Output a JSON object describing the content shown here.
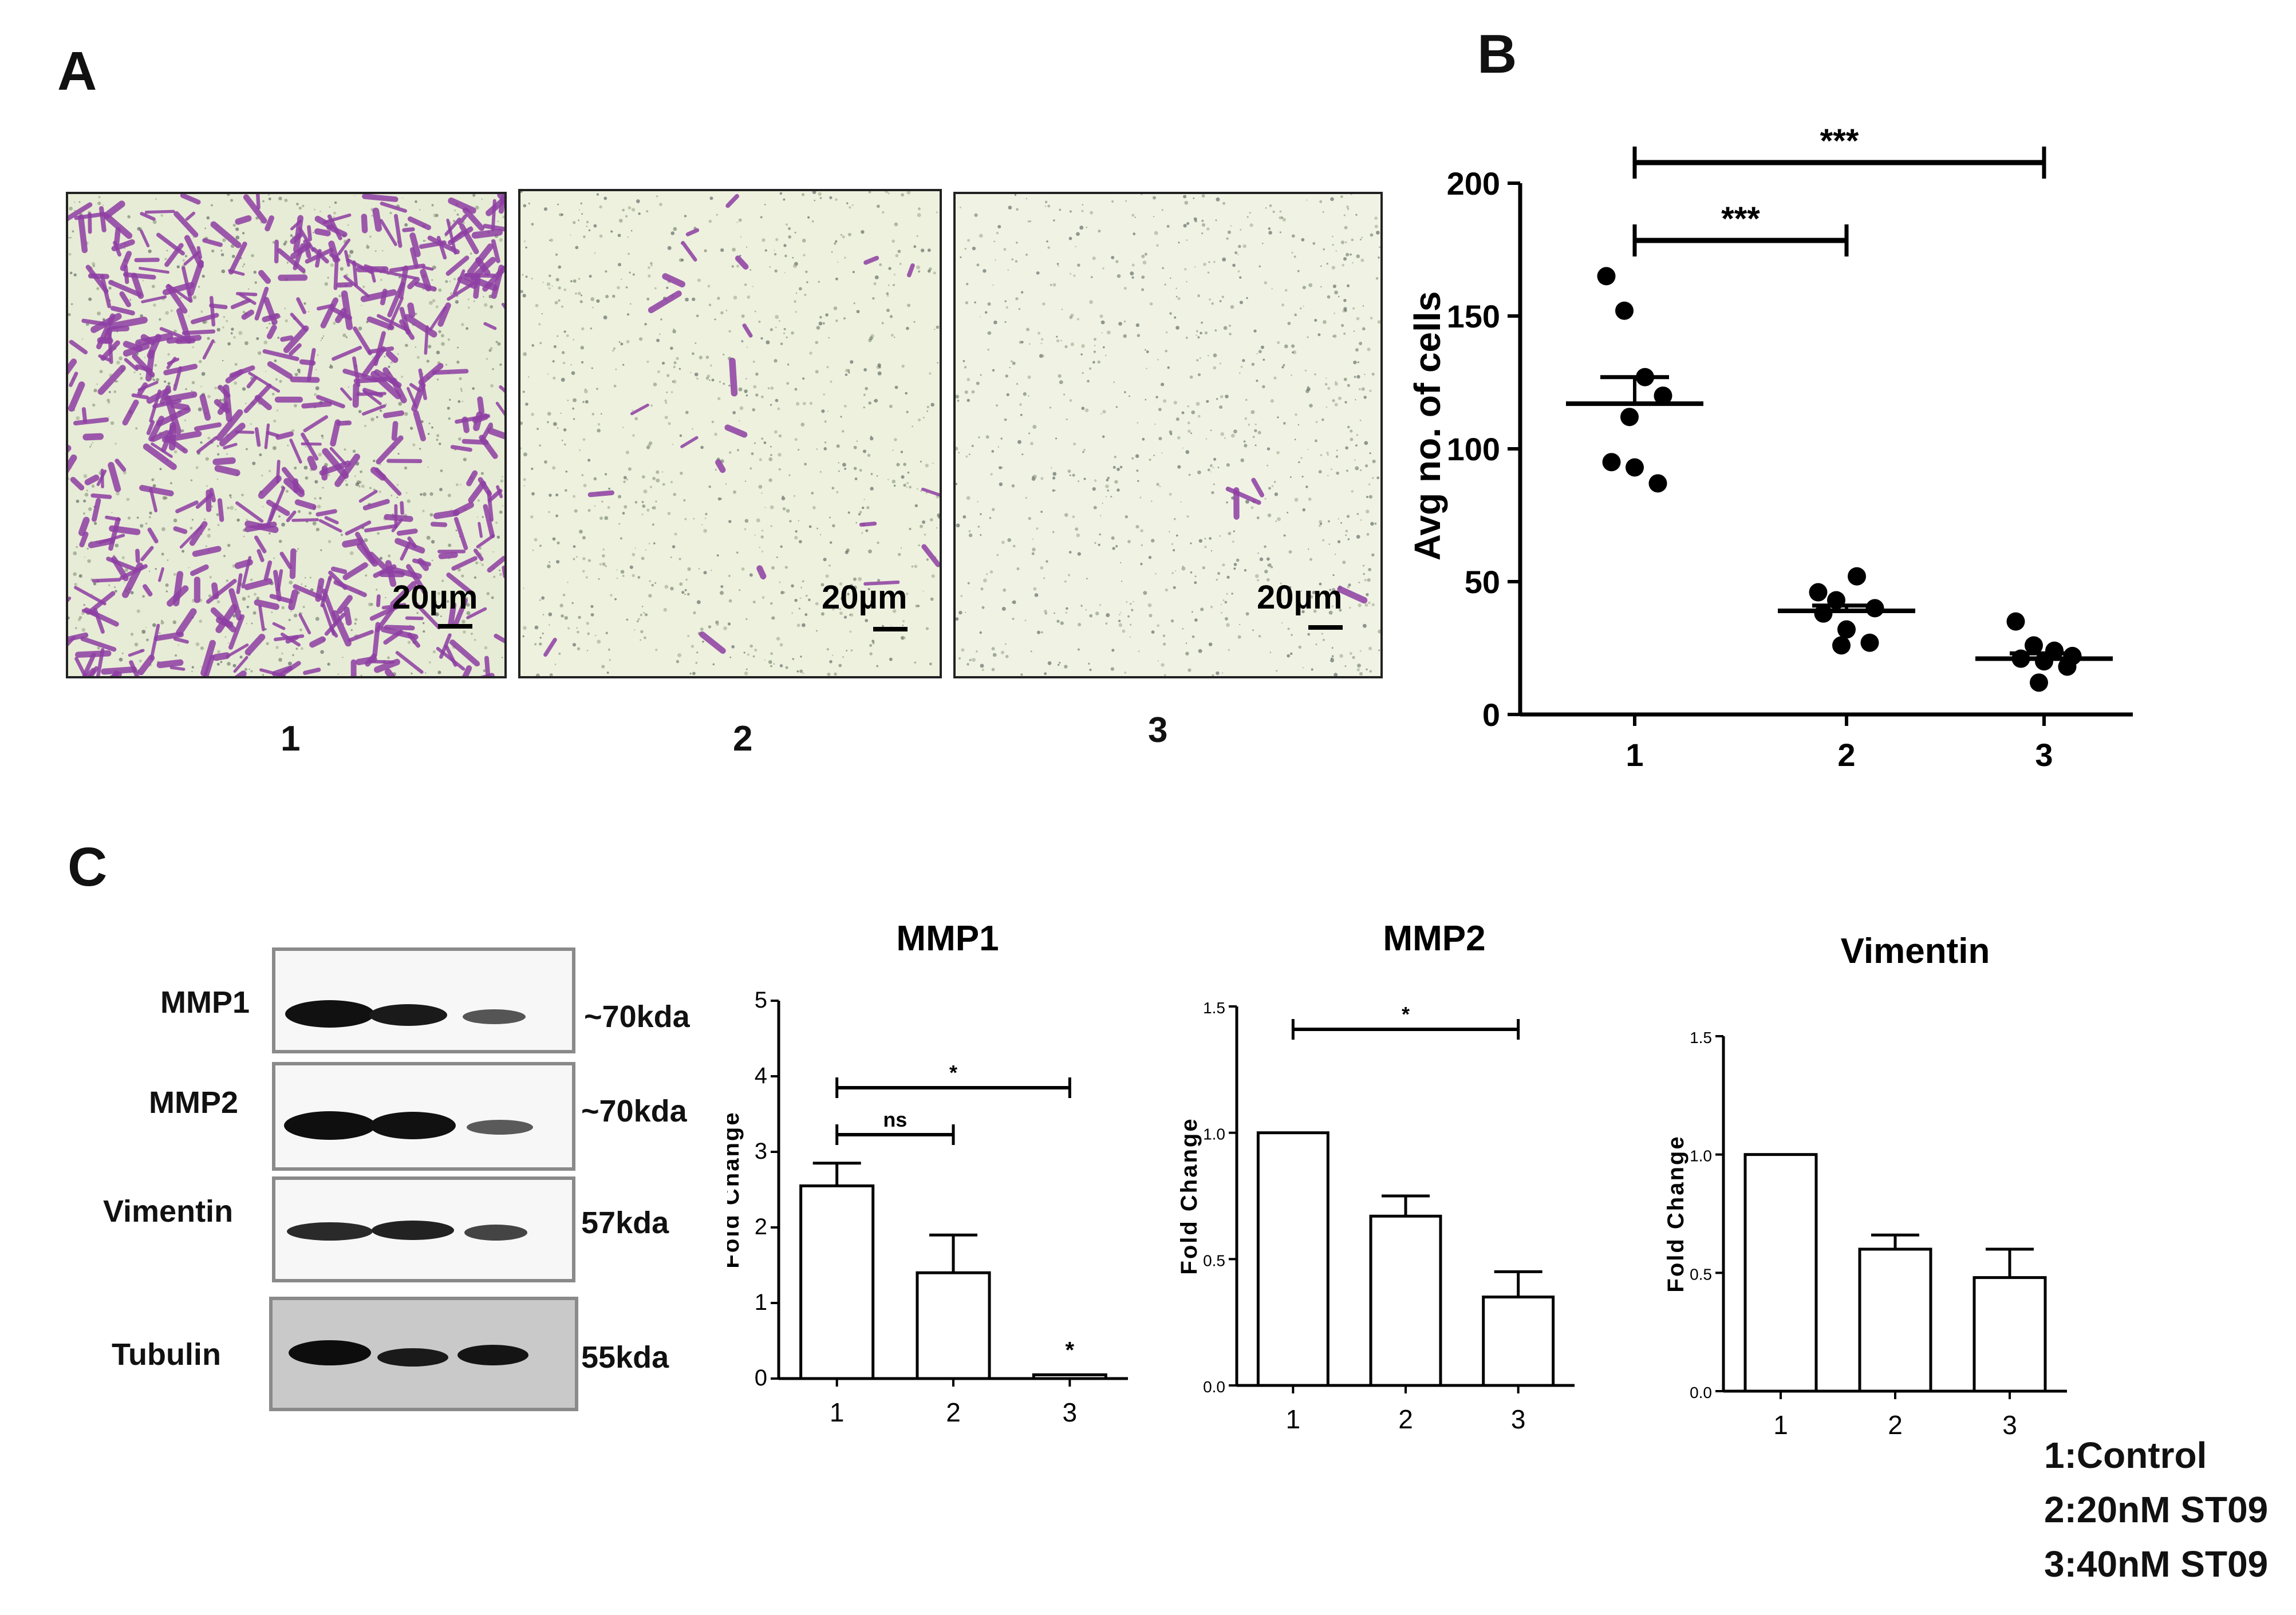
{
  "panels": {
    "A": "A",
    "B": "B",
    "C": "C"
  },
  "panel_a": {
    "scale_label": "20µm",
    "lanes": [
      "1",
      "2",
      "3"
    ]
  },
  "western_blot": {
    "rows": [
      {
        "name": "MMP1",
        "kda": "~70kda"
      },
      {
        "name": "MMP2",
        "kda": "~70kda"
      },
      {
        "name": "Vimentin",
        "kda": "57kda"
      },
      {
        "name": "Tubulin",
        "kda": "55kda"
      }
    ]
  },
  "legend": {
    "line1": "1:Control",
    "line2": "2:20nM ST09",
    "line3": "3:40nM ST09"
  },
  "colors": {
    "stain": "#8e3fa3",
    "background": "#ffffff",
    "ink": "#000000"
  },
  "chart_data": [
    {
      "id": "B",
      "type": "scatter",
      "title": "",
      "xlabel": "",
      "ylabel": "Avg no. of cells",
      "categories": [
        "1",
        "2",
        "3"
      ],
      "ylim": [
        0,
        200
      ],
      "yticks": [
        0,
        50,
        100,
        150,
        200
      ],
      "points": [
        [
          165,
          152,
          127,
          120,
          95,
          93,
          87,
          112
        ],
        [
          46,
          43,
          52,
          40,
          38,
          32,
          27,
          26
        ],
        [
          35,
          26,
          24,
          22,
          21,
          20,
          18,
          12
        ]
      ],
      "means": [
        117,
        39,
        21
      ],
      "sem_upper": [
        127,
        41,
        23
      ],
      "significance": [
        {
          "from": "1",
          "to": "2",
          "label": "***"
        },
        {
          "from": "1",
          "to": "3",
          "label": "***"
        }
      ]
    },
    {
      "id": "MMP1",
      "type": "bar",
      "title": "MMP1",
      "xlabel": "",
      "ylabel": "Fold Change",
      "categories": [
        "1",
        "2",
        "3"
      ],
      "values": [
        2.55,
        1.4,
        0.05
      ],
      "errors": [
        0.3,
        0.5,
        0
      ],
      "ylim": [
        0,
        5
      ],
      "yticks": [
        0,
        1,
        2,
        3,
        4,
        5
      ],
      "significance": [
        {
          "from": "1",
          "to": "2",
          "label": "ns"
        },
        {
          "from": "1",
          "to": "3",
          "label": "*"
        }
      ],
      "bar_annotations": [
        {
          "category": "3",
          "label": "*"
        }
      ]
    },
    {
      "id": "MMP2",
      "type": "bar",
      "title": "MMP2",
      "xlabel": "",
      "ylabel": "Fold Change",
      "categories": [
        "1",
        "2",
        "3"
      ],
      "values": [
        1.0,
        0.67,
        0.35
      ],
      "errors": [
        0,
        0.08,
        0.1
      ],
      "ylim": [
        0,
        1.5
      ],
      "yticks": [
        "0.0",
        "0.5",
        "1.0",
        "1.5"
      ],
      "significance": [
        {
          "from": "1",
          "to": "3",
          "label": "*"
        }
      ]
    },
    {
      "id": "Vimentin",
      "type": "bar",
      "title": "Vimentin",
      "xlabel": "",
      "ylabel": "Fold Change",
      "categories": [
        "1",
        "2",
        "3"
      ],
      "values": [
        1.0,
        0.6,
        0.48
      ],
      "errors": [
        0,
        0.06,
        0.12
      ],
      "ylim": [
        0,
        1.5
      ],
      "yticks": [
        "0.0",
        "0.5",
        "1.0",
        "1.5"
      ],
      "significance": []
    }
  ]
}
